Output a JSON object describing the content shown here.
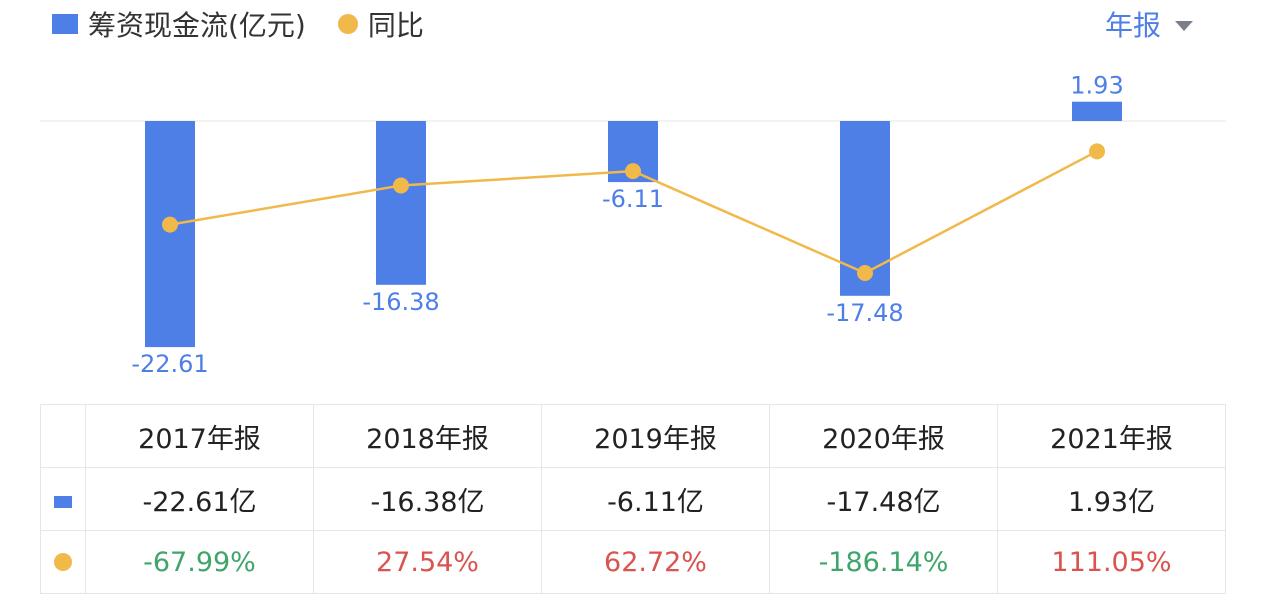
{
  "legend": {
    "bar_label": "筹资现金流(亿元)",
    "line_label": "同比"
  },
  "period_selector": {
    "label": "年报"
  },
  "colors": {
    "bar": "#4e7fe6",
    "line": "#f0b94a",
    "positive": "#d9534f",
    "negative": "#3fa56b",
    "value_label": "#4e7fe6"
  },
  "chart_data": {
    "type": "bar",
    "categories": [
      "2017年报",
      "2018年报",
      "2019年报",
      "2020年报",
      "2021年报"
    ],
    "series": [
      {
        "name": "筹资现金流(亿元)",
        "type": "bar",
        "values": [
          -22.61,
          -16.38,
          -6.11,
          -17.48,
          1.93
        ],
        "labels": [
          "-22.61",
          "-16.38",
          "-6.11",
          "-17.48",
          "1.93"
        ]
      },
      {
        "name": "同比",
        "type": "line",
        "values": [
          -67.99,
          27.54,
          62.72,
          -186.14,
          111.05
        ]
      }
    ]
  },
  "table": {
    "headers": [
      "2017年报",
      "2018年报",
      "2019年报",
      "2020年报",
      "2021年报"
    ],
    "rows": [
      {
        "marker": "bar",
        "cells": [
          "-22.61亿",
          "-16.38亿",
          "-6.11亿",
          "-17.48亿",
          "1.93亿"
        ]
      },
      {
        "marker": "dot",
        "cells": [
          "-67.99%",
          "27.54%",
          "62.72%",
          "-186.14%",
          "111.05%"
        ],
        "signs": [
          -1,
          1,
          1,
          -1,
          1
        ]
      }
    ]
  }
}
